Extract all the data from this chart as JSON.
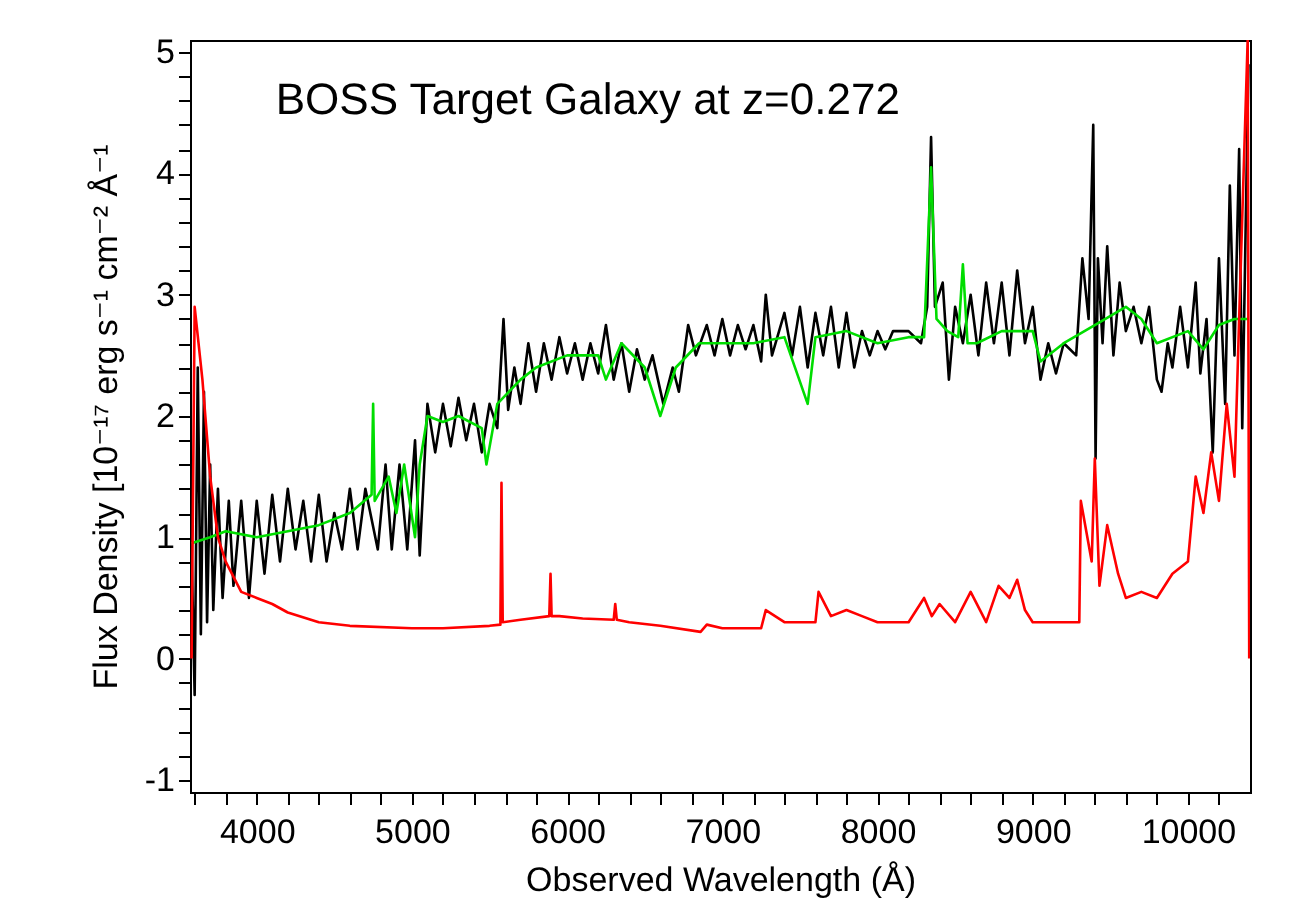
{
  "chart_data": {
    "type": "line",
    "title": "BOSS Target Galaxy at z=0.272",
    "xlabel": "Observed Wavelength (Å)",
    "ylabel": "Flux Density [10⁻¹⁷ erg s⁻¹ cm⁻² Å⁻¹",
    "xlim": [
      3570,
      10400
    ],
    "ylim": [
      -1.1,
      5.1
    ],
    "xticks": [
      {
        "value": 3600,
        "label": null
      },
      {
        "value": 3800,
        "label": null
      },
      4000,
      {
        "value": 4200,
        "label": null
      },
      {
        "value": 4400,
        "label": null
      },
      {
        "value": 4600,
        "label": null
      },
      {
        "value": 4800,
        "label": null
      },
      5000,
      {
        "value": 5200,
        "label": null
      },
      {
        "value": 5400,
        "label": null
      },
      {
        "value": 5600,
        "label": null
      },
      {
        "value": 5800,
        "label": null
      },
      6000,
      {
        "value": 6200,
        "label": null
      },
      {
        "value": 6400,
        "label": null
      },
      {
        "value": 6600,
        "label": null
      },
      {
        "value": 6800,
        "label": null
      },
      7000,
      {
        "value": 7200,
        "label": null
      },
      {
        "value": 7400,
        "label": null
      },
      {
        "value": 7600,
        "label": null
      },
      {
        "value": 7800,
        "label": null
      },
      8000,
      {
        "value": 8200,
        "label": null
      },
      {
        "value": 8400,
        "label": null
      },
      {
        "value": 8600,
        "label": null
      },
      {
        "value": 8800,
        "label": null
      },
      9000,
      {
        "value": 9200,
        "label": null
      },
      {
        "value": 9400,
        "label": null
      },
      {
        "value": 9600,
        "label": null
      },
      {
        "value": 9800,
        "label": null
      },
      10000,
      {
        "value": 10200,
        "label": null
      }
    ],
    "yticks": [
      -1,
      {
        "value": -0.8,
        "label": null
      },
      {
        "value": -0.6,
        "label": null
      },
      {
        "value": -0.4,
        "label": null
      },
      {
        "value": -0.2,
        "label": null
      },
      0,
      {
        "value": 0.2,
        "label": null
      },
      {
        "value": 0.4,
        "label": null
      },
      {
        "value": 0.6,
        "label": null
      },
      {
        "value": 0.8,
        "label": null
      },
      1,
      {
        "value": 1.2,
        "label": null
      },
      {
        "value": 1.4,
        "label": null
      },
      {
        "value": 1.6,
        "label": null
      },
      {
        "value": 1.8,
        "label": null
      },
      2,
      {
        "value": 2.2,
        "label": null
      },
      {
        "value": 2.4,
        "label": null
      },
      {
        "value": 2.6,
        "label": null
      },
      {
        "value": 2.8,
        "label": null
      },
      3,
      {
        "value": 3.2,
        "label": null
      },
      {
        "value": 3.4,
        "label": null
      },
      {
        "value": 3.6,
        "label": null
      },
      {
        "value": 3.8,
        "label": null
      },
      4,
      {
        "value": 4.2,
        "label": null
      },
      {
        "value": 4.4,
        "label": null
      },
      {
        "value": 4.6,
        "label": null
      },
      {
        "value": 4.8,
        "label": null
      },
      5
    ],
    "series": [
      {
        "color": "#000000",
        "x": [
          3580,
          3600,
          3620,
          3640,
          3660,
          3680,
          3700,
          3720,
          3750,
          3780,
          3820,
          3850,
          3900,
          3950,
          4000,
          4050,
          4100,
          4150,
          4200,
          4250,
          4300,
          4350,
          4400,
          4450,
          4500,
          4550,
          4600,
          4650,
          4700,
          4780,
          4830,
          4870,
          4920,
          4970,
          5020,
          5050,
          5100,
          5150,
          5200,
          5250,
          5300,
          5350,
          5400,
          5450,
          5500,
          5550,
          5590,
          5620,
          5660,
          5700,
          5750,
          5800,
          5850,
          5900,
          5950,
          6000,
          6050,
          6100,
          6150,
          6200,
          6250,
          6300,
          6350,
          6400,
          6450,
          6500,
          6550,
          6620,
          6680,
          6720,
          6780,
          6830,
          6900,
          6950,
          7000,
          7050,
          7100,
          7150,
          7200,
          7250,
          7280,
          7320,
          7400,
          7450,
          7500,
          7550,
          7600,
          7650,
          7700,
          7750,
          7800,
          7850,
          7900,
          7950,
          8000,
          8050,
          8100,
          8200,
          8280,
          8320,
          8345,
          8370,
          8420,
          8460,
          8500,
          8550,
          8600,
          8650,
          8700,
          8750,
          8800,
          8850,
          8900,
          8950,
          9000,
          9050,
          9100,
          9150,
          9200,
          9280,
          9320,
          9360,
          9390,
          9405,
          9420,
          9450,
          9480,
          9520,
          9560,
          9600,
          9650,
          9700,
          9750,
          9800,
          9830,
          9870,
          9900,
          9950,
          10000,
          10050,
          10080,
          10120,
          10160,
          10200,
          10240,
          10270,
          10300,
          10330,
          10350,
          10370,
          10390
        ],
        "values": [
          0.9,
          -0.3,
          2.4,
          0.2,
          2.2,
          0.3,
          1.6,
          0.4,
          1.4,
          0.5,
          1.3,
          0.6,
          1.3,
          0.5,
          1.3,
          0.7,
          1.35,
          0.8,
          1.4,
          0.9,
          1.3,
          0.8,
          1.35,
          0.8,
          1.2,
          0.9,
          1.4,
          0.9,
          1.4,
          0.9,
          1.6,
          0.9,
          1.6,
          0.9,
          1.8,
          0.85,
          2.1,
          1.7,
          2.1,
          1.75,
          2.15,
          1.8,
          2.1,
          1.7,
          2.1,
          1.9,
          2.8,
          2.05,
          2.4,
          2.1,
          2.6,
          2.2,
          2.6,
          2.3,
          2.65,
          2.35,
          2.6,
          2.3,
          2.6,
          2.35,
          2.75,
          2.3,
          2.6,
          2.2,
          2.55,
          2.3,
          2.5,
          2.1,
          2.4,
          2.2,
          2.75,
          2.5,
          2.75,
          2.5,
          2.8,
          2.5,
          2.75,
          2.55,
          2.75,
          2.45,
          3.0,
          2.5,
          2.85,
          2.5,
          2.9,
          2.4,
          2.85,
          2.5,
          2.9,
          2.4,
          2.85,
          2.4,
          2.7,
          2.5,
          2.7,
          2.55,
          2.7,
          2.7,
          2.6,
          2.9,
          4.3,
          2.9,
          3.1,
          2.3,
          2.9,
          2.6,
          3.0,
          2.5,
          3.1,
          2.6,
          3.1,
          2.5,
          3.2,
          2.6,
          2.9,
          2.3,
          2.6,
          2.35,
          2.6,
          2.5,
          3.3,
          2.8,
          4.4,
          1.65,
          3.3,
          2.6,
          3.4,
          2.5,
          3.1,
          2.7,
          2.9,
          2.6,
          2.9,
          2.3,
          2.2,
          2.6,
          2.4,
          2.9,
          2.4,
          3.1,
          2.35,
          2.8,
          1.7,
          3.3,
          2.1,
          3.9,
          2.5,
          4.2,
          1.9,
          3.4,
          4.9
        ]
      },
      {
        "color": "#00dd00",
        "x": [
          3580,
          3700,
          3800,
          4000,
          4200,
          4400,
          4600,
          4740,
          4750,
          4760,
          4850,
          4900,
          4950,
          5020,
          5050,
          5100,
          5200,
          5300,
          5450,
          5480,
          5550,
          5700,
          5800,
          6000,
          6200,
          6250,
          6350,
          6500,
          6600,
          6700,
          6850,
          7000,
          7200,
          7400,
          7550,
          7600,
          7800,
          8000,
          8200,
          8300,
          8345,
          8380,
          8450,
          8520,
          8550,
          8580,
          8640,
          8800,
          9000,
          9050,
          9200,
          9400,
          9600,
          9700,
          9800,
          10000,
          10100,
          10200,
          10300,
          10390
        ],
        "values": [
          0.95,
          1.0,
          1.05,
          1.0,
          1.05,
          1.1,
          1.2,
          1.35,
          2.1,
          1.3,
          1.5,
          1.2,
          1.6,
          1.0,
          1.6,
          2.0,
          1.95,
          2.0,
          1.9,
          1.6,
          2.1,
          2.3,
          2.4,
          2.5,
          2.5,
          2.3,
          2.6,
          2.4,
          2.0,
          2.4,
          2.6,
          2.6,
          2.6,
          2.65,
          2.1,
          2.65,
          2.7,
          2.6,
          2.65,
          2.65,
          4.05,
          2.8,
          2.7,
          2.65,
          3.25,
          2.6,
          2.6,
          2.7,
          2.7,
          2.45,
          2.6,
          2.75,
          2.9,
          2.8,
          2.6,
          2.7,
          2.55,
          2.75,
          2.8,
          2.8
        ]
      },
      {
        "color": "#ff0000",
        "x": [
          3580,
          3600,
          3650,
          3700,
          3750,
          3800,
          3900,
          4000,
          4100,
          4200,
          4400,
          4600,
          5000,
          5200,
          5500,
          5570,
          5577,
          5585,
          5700,
          5885,
          5893,
          5900,
          5950,
          6100,
          6300,
          6310,
          6320,
          6400,
          6600,
          6860,
          6900,
          7000,
          7250,
          7280,
          7400,
          7600,
          7620,
          7700,
          7800,
          7900,
          8000,
          8200,
          8300,
          8350,
          8400,
          8500,
          8600,
          8700,
          8780,
          8850,
          8900,
          8950,
          9000,
          9100,
          9300,
          9310,
          9380,
          9400,
          9430,
          9480,
          9550,
          9600,
          9700,
          9800,
          9900,
          10000,
          10050,
          10100,
          10150,
          10200,
          10250,
          10300,
          10330,
          10385,
          10395
        ],
        "values": [
          0,
          2.9,
          2.3,
          1.5,
          1.0,
          0.8,
          0.55,
          0.5,
          0.45,
          0.38,
          0.3,
          0.27,
          0.25,
          0.25,
          0.27,
          0.28,
          1.45,
          0.3,
          0.32,
          0.35,
          0.7,
          0.35,
          0.35,
          0.33,
          0.32,
          0.45,
          0.32,
          0.3,
          0.27,
          0.22,
          0.28,
          0.25,
          0.25,
          0.4,
          0.3,
          0.3,
          0.55,
          0.35,
          0.4,
          0.35,
          0.3,
          0.3,
          0.5,
          0.35,
          0.45,
          0.3,
          0.55,
          0.3,
          0.6,
          0.5,
          0.65,
          0.4,
          0.3,
          0.3,
          0.3,
          1.3,
          0.8,
          1.65,
          0.6,
          1.1,
          0.7,
          0.5,
          0.55,
          0.5,
          0.7,
          0.8,
          1.5,
          1.2,
          1.7,
          1.3,
          2.1,
          1.5,
          2.8,
          5.1,
          0
        ]
      }
    ]
  }
}
